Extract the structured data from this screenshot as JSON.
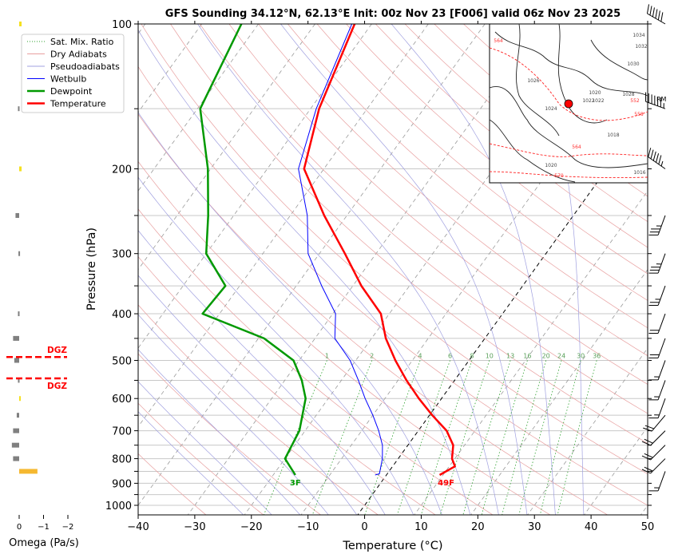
{
  "chart_data": {
    "type": "line",
    "chart_kind": "skew-T log-P sounding",
    "title": "GFS Sounding 34.12°N, 62.13°E Init: 00z Nov 23 [F006] valid 06z Nov 23 2025",
    "xlabel": "Temperature (°C)",
    "ylabel": "Pressure (hPa)",
    "xlim": [
      -40,
      50
    ],
    "ylim": [
      1050,
      100
    ],
    "x_ticks": [
      -40,
      -30,
      -20,
      -10,
      0,
      10,
      20,
      30,
      40,
      50
    ],
    "x_tick_labels": [
      "−40",
      "−30",
      "−20",
      "−10",
      "0",
      "10",
      "20",
      "30",
      "40",
      "50"
    ],
    "y_ticks": [
      100,
      200,
      300,
      400,
      500,
      600,
      700,
      800,
      900,
      1000
    ],
    "y_tick_labels": [
      "100",
      "200",
      "300",
      "400",
      "500",
      "600",
      "700",
      "800",
      "900",
      "1000"
    ],
    "y_minor_ticks": [
      150,
      250,
      350,
      450,
      550,
      650,
      750,
      850,
      950
    ],
    "grid": true,
    "legend": {
      "placement": "upper-left",
      "entries": [
        {
          "label": "Sat. Mix. Ratio",
          "color": "#2ca02c",
          "style": "dotted"
        },
        {
          "label": "Dry Adiabats",
          "color": "#e8a0a0",
          "style": "solid"
        },
        {
          "label": "Pseudoadiabats",
          "color": "#a0a0e0",
          "style": "solid"
        },
        {
          "label": "Wetbulb",
          "color": "#0000ff",
          "style": "solid"
        },
        {
          "label": "Dewpoint",
          "color": "#009900",
          "style": "solid-thick"
        },
        {
          "label": "Temperature",
          "color": "#ff0000",
          "style": "solid-thick"
        }
      ]
    },
    "series": [
      {
        "name": "Temperature",
        "color": "#ff0000",
        "points": [
          {
            "p": 865,
            "t": 9.4
          },
          {
            "p": 830,
            "t": 11.0
          },
          {
            "p": 800,
            "t": 9.5
          },
          {
            "p": 750,
            "t": 8.0
          },
          {
            "p": 700,
            "t": 5.0
          },
          {
            "p": 650,
            "t": 0.5
          },
          {
            "p": 600,
            "t": -4.0
          },
          {
            "p": 550,
            "t": -8.5
          },
          {
            "p": 500,
            "t": -13.0
          },
          {
            "p": 450,
            "t": -17.5
          },
          {
            "p": 400,
            "t": -21.5
          },
          {
            "p": 350,
            "t": -28.5
          },
          {
            "p": 300,
            "t": -35.5
          },
          {
            "p": 250,
            "t": -44.0
          },
          {
            "p": 200,
            "t": -53.5
          },
          {
            "p": 150,
            "t": -58.5
          },
          {
            "p": 100,
            "t": -63.0
          }
        ]
      },
      {
        "name": "Dewpoint",
        "color": "#009900",
        "points": [
          {
            "p": 865,
            "t": -16.1
          },
          {
            "p": 800,
            "t": -20.0
          },
          {
            "p": 700,
            "t": -21.0
          },
          {
            "p": 600,
            "t": -24.0
          },
          {
            "p": 550,
            "t": -27.0
          },
          {
            "p": 500,
            "t": -31.0
          },
          {
            "p": 450,
            "t": -39.0
          },
          {
            "p": 400,
            "t": -53.0
          },
          {
            "p": 350,
            "t": -52.5
          },
          {
            "p": 300,
            "t": -60.0
          },
          {
            "p": 250,
            "t": -64.5
          },
          {
            "p": 200,
            "t": -70.5
          },
          {
            "p": 150,
            "t": -79.5
          },
          {
            "p": 100,
            "t": -83.0
          }
        ]
      },
      {
        "name": "Wetbulb",
        "color": "#0000ff",
        "points": [
          {
            "p": 865,
            "t": -2.0
          },
          {
            "p": 860,
            "t": -1.4
          },
          {
            "p": 800,
            "t": -2.8
          },
          {
            "p": 750,
            "t": -4.5
          },
          {
            "p": 700,
            "t": -7.0
          },
          {
            "p": 650,
            "t": -10.0
          },
          {
            "p": 600,
            "t": -13.5
          },
          {
            "p": 550,
            "t": -17.0
          },
          {
            "p": 500,
            "t": -21.0
          },
          {
            "p": 450,
            "t": -26.5
          },
          {
            "p": 400,
            "t": -29.5
          },
          {
            "p": 350,
            "t": -35.5
          },
          {
            "p": 300,
            "t": -42.0
          },
          {
            "p": 250,
            "t": -47.0
          },
          {
            "p": 200,
            "t": -54.5
          },
          {
            "p": 150,
            "t": -59.0
          },
          {
            "p": 100,
            "t": -63.5
          }
        ]
      }
    ],
    "mixing_ratio_labels": [
      "1",
      "2",
      "4",
      "6",
      "8",
      "10",
      "13",
      "16",
      "20",
      "24",
      "30",
      "36"
    ],
    "mixing_ratio_label_pressure": 500,
    "surface_labels": {
      "temperature": "49F",
      "dewpoint": "3F"
    },
    "omega_panel": {
      "xlabel": "Omega (Pa/s)",
      "x_ticks": [
        "0",
        "−1",
        "−2"
      ],
      "dgz_label": "DGZ",
      "dgz_bounds_hpa": [
        490,
        545
      ],
      "bars": [
        {
          "p": 100,
          "omega": -0.1,
          "color": "#f5e020"
        },
        {
          "p": 150,
          "omega": 0.05,
          "color": "#808080"
        },
        {
          "p": 200,
          "omega": -0.1,
          "color": "#f5e020"
        },
        {
          "p": 250,
          "omega": 0.15,
          "color": "#808080"
        },
        {
          "p": 300,
          "omega": 0.03,
          "color": "#808080"
        },
        {
          "p": 400,
          "omega": 0.05,
          "color": "#808080"
        },
        {
          "p": 450,
          "omega": 0.25,
          "color": "#808080"
        },
        {
          "p": 500,
          "omega": 0.2,
          "color": "#808080"
        },
        {
          "p": 550,
          "omega": 0.05,
          "color": "#808080"
        },
        {
          "p": 600,
          "omega": -0.02,
          "color": "#f5e020"
        },
        {
          "p": 650,
          "omega": 0.1,
          "color": "#808080"
        },
        {
          "p": 700,
          "omega": 0.25,
          "color": "#808080"
        },
        {
          "p": 750,
          "omega": 0.3,
          "color": "#808080"
        },
        {
          "p": 800,
          "omega": 0.25,
          "color": "#808080"
        },
        {
          "p": 850,
          "omega": -0.75,
          "color": "#f5b830"
        }
      ]
    },
    "wind_barbs": [
      {
        "p": 100,
        "speed_kt": 60,
        "dir_deg": 300
      },
      {
        "p": 150,
        "speed_kt": 65,
        "dir_deg": 290
      },
      {
        "p": 200,
        "speed_kt": 55,
        "dir_deg": 305
      },
      {
        "p": 250,
        "speed_kt": 35,
        "dir_deg": 200
      },
      {
        "p": 300,
        "speed_kt": 35,
        "dir_deg": 200
      },
      {
        "p": 350,
        "speed_kt": 25,
        "dir_deg": 200
      },
      {
        "p": 400,
        "speed_kt": 20,
        "dir_deg": 200
      },
      {
        "p": 450,
        "speed_kt": 20,
        "dir_deg": 200
      },
      {
        "p": 500,
        "speed_kt": 15,
        "dir_deg": 200
      },
      {
        "p": 550,
        "speed_kt": 15,
        "dir_deg": 200
      },
      {
        "p": 600,
        "speed_kt": 15,
        "dir_deg": 200
      },
      {
        "p": 650,
        "speed_kt": 20,
        "dir_deg": 220
      },
      {
        "p": 700,
        "speed_kt": 20,
        "dir_deg": 225
      },
      {
        "p": 750,
        "speed_kt": 20,
        "dir_deg": 225
      },
      {
        "p": 800,
        "speed_kt": 20,
        "dir_deg": 225
      },
      {
        "p": 850,
        "speed_kt": 15,
        "dir_deg": 200
      }
    ],
    "wind_barb_annotation": "RM",
    "inset_map": {
      "contour_labels_black": [
        "1034",
        "1032",
        "1030",
        "1028",
        "1026",
        "1024",
        "1022",
        "1022",
        "1020",
        "1020",
        "1018",
        "1016"
      ],
      "contour_labels_red": [
        "564",
        "564",
        "570",
        "552",
        "558"
      ],
      "marker_color": "#ff0000"
    }
  }
}
